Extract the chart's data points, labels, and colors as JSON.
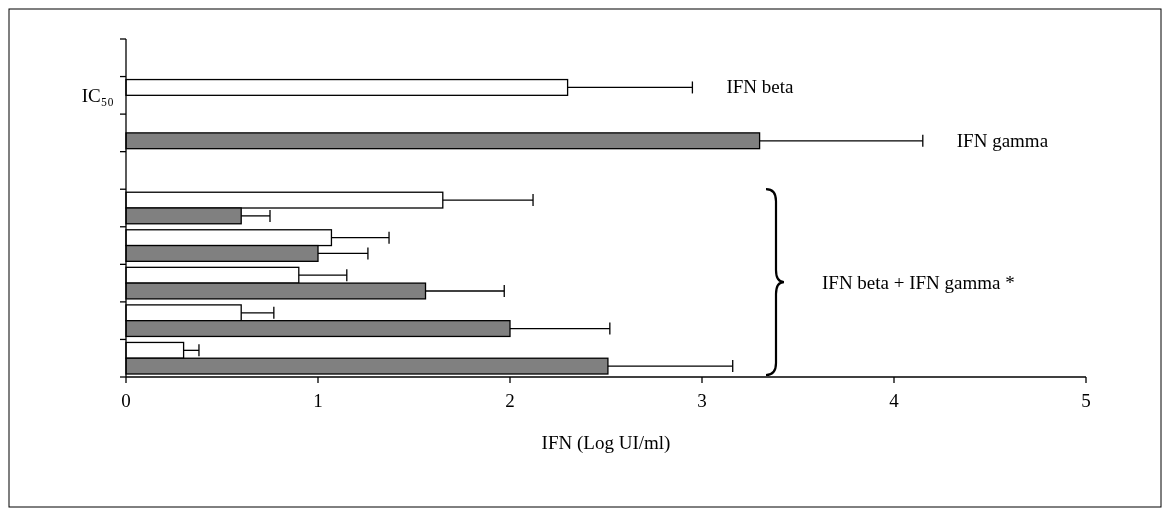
{
  "chart_data": {
    "type": "bar",
    "orientation": "horizontal",
    "xlabel": "IFN (Log UI/ml)",
    "categories": [
      null,
      "IC₅₀",
      null,
      null,
      null,
      null,
      null,
      null,
      null
    ],
    "series": [
      {
        "name": "IFN beta",
        "color": "#ffffff",
        "values": [
          null,
          2.3,
          null,
          null,
          1.65,
          1.07,
          0.9,
          0.6,
          0.3
        ],
        "errors": [
          null,
          [
            2.3,
            2.95
          ],
          null,
          null,
          [
            1.65,
            2.12
          ],
          [
            1.07,
            1.37
          ],
          [
            0.9,
            1.15
          ],
          [
            0.6,
            0.77
          ],
          [
            0.3,
            0.38
          ]
        ]
      },
      {
        "name": "IFN gamma",
        "color": "#808080",
        "values": [
          null,
          null,
          3.3,
          null,
          0.6,
          1.0,
          1.56,
          2.0,
          2.51
        ],
        "errors": [
          null,
          null,
          [
            3.3,
            4.15
          ],
          null,
          [
            0.6,
            0.75
          ],
          [
            1.0,
            1.26
          ],
          [
            1.56,
            1.97
          ],
          [
            2.0,
            2.52
          ],
          [
            2.51,
            3.16
          ]
        ]
      }
    ],
    "xlim": [
      0,
      5
    ],
    "xticks": [
      0,
      1,
      2,
      3,
      4,
      5
    ],
    "grid": false,
    "legend": false,
    "annotations": [
      "IFN beta + IFN gamma *"
    ]
  }
}
